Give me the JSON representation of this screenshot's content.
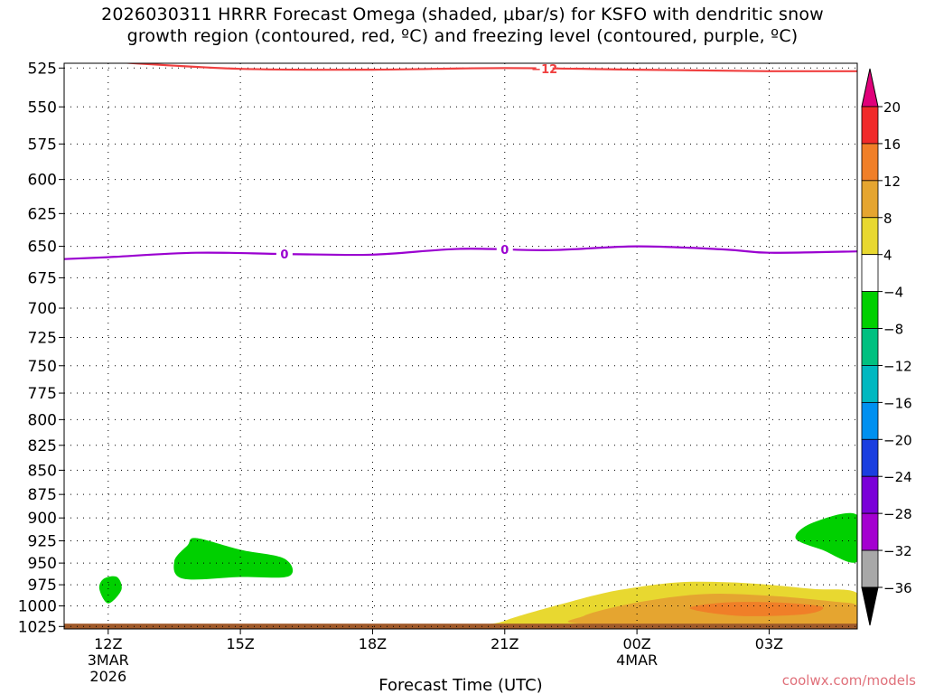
{
  "title": {
    "line1": "2026030311 HRRR Forecast Omega (shaded, μbar/s) for KSFO with dendritic snow",
    "line2": "growth region (contoured, red, ºC) and freezing level (contoured, purple, ºC)"
  },
  "credit": "coolwx.com/models",
  "chart_data": {
    "type": "heatmap",
    "xlabel": "Forecast Time (UTC)",
    "ylabel": "",
    "x_ticks": [
      {
        "label": "12Z",
        "hour": 0,
        "sub": [
          "3MAR",
          "2026"
        ]
      },
      {
        "label": "15Z",
        "hour": 3,
        "sub": []
      },
      {
        "label": "18Z",
        "hour": 6,
        "sub": []
      },
      {
        "label": "21Z",
        "hour": 9,
        "sub": []
      },
      {
        "label": "00Z",
        "hour": 12,
        "sub": [
          "4MAR"
        ]
      },
      {
        "label": "03Z",
        "hour": 15,
        "sub": []
      }
    ],
    "xlim_hours": [
      -1,
      17
    ],
    "y_ticks": [
      525,
      550,
      575,
      600,
      625,
      650,
      675,
      700,
      725,
      750,
      775,
      800,
      825,
      850,
      875,
      900,
      925,
      950,
      975,
      1000,
      1025
    ],
    "ylim_hpa": [
      522,
      1028
    ],
    "y_scale": "log-pressure",
    "grid": true,
    "colorbar": {
      "labels": [
        "20",
        "16",
        "12",
        "8",
        "4",
        "−4",
        "−8",
        "−12",
        "−16",
        "−20",
        "−24",
        "−28",
        "−32",
        "−36"
      ],
      "colors": [
        "#f02a2a",
        "#f07f28",
        "#e5a530",
        "#e8d830",
        "#ffffff",
        "#00d000",
        "#00c080",
        "#00b8c0",
        "#0090f0",
        "#1a3ee0",
        "#7a00d8",
        "#a400d0",
        "#a8a8a8"
      ],
      "top_color": "#e0007a",
      "bottom_color": "#000000"
    },
    "contours": [
      {
        "name": "dendritic snow growth",
        "color": "#f04040",
        "label": "−12",
        "label_hour": 9.9,
        "points": [
          [
            0,
            521
          ],
          [
            3,
            525.5
          ],
          [
            6,
            526
          ],
          [
            9,
            525
          ],
          [
            12,
            526
          ],
          [
            15,
            527
          ],
          [
            17,
            527
          ]
        ]
      },
      {
        "name": "freezing level",
        "color": "#9a00d0",
        "label": "0",
        "label_hours": [
          4,
          9
        ],
        "points": [
          [
            -1,
            660
          ],
          [
            0,
            658.5
          ],
          [
            2,
            655
          ],
          [
            4,
            656
          ],
          [
            6,
            656.5
          ],
          [
            8,
            652
          ],
          [
            10,
            653
          ],
          [
            12,
            650
          ],
          [
            14,
            652.5
          ],
          [
            15,
            655
          ],
          [
            17,
            654
          ]
        ]
      }
    ],
    "shaded_regions": [
      {
        "value_range": [
          -8,
          -4
        ],
        "color": "#00d000",
        "points": [
          [
            -0.2,
            980
          ],
          [
            -0.1,
            968
          ],
          [
            0.2,
            966
          ],
          [
            0.3,
            981
          ],
          [
            0,
            997
          ]
        ]
      },
      {
        "value_range": [
          -8,
          -4
        ],
        "color": "#00d000",
        "points": [
          [
            1.5,
            948
          ],
          [
            1.8,
            930
          ],
          [
            2,
            922
          ],
          [
            3,
            935
          ],
          [
            4,
            945
          ],
          [
            4.1,
            965
          ],
          [
            3,
            966
          ],
          [
            1.7,
            968
          ]
        ]
      },
      {
        "value_range": [
          -8,
          -4
        ],
        "color": "#00d000",
        "points": [
          [
            15.6,
            922
          ],
          [
            16,
            905
          ],
          [
            17,
            897
          ],
          [
            17,
            948
          ],
          [
            16.2,
            935
          ]
        ]
      },
      {
        "value_range": [
          4,
          8
        ],
        "color": "#e8d830",
        "points": [
          [
            9,
            1018
          ],
          [
            11,
            988
          ],
          [
            12,
            978
          ],
          [
            13,
            972
          ],
          [
            14,
            972
          ],
          [
            15,
            975
          ],
          [
            16,
            980
          ],
          [
            17,
            985
          ],
          [
            17,
            1022
          ],
          [
            9.5,
            1022
          ]
        ]
      },
      {
        "value_range": [
          8,
          12
        ],
        "color": "#e5a530",
        "points": [
          [
            10.8,
            1012
          ],
          [
            12,
            996
          ],
          [
            13.5,
            986
          ],
          [
            15,
            988
          ],
          [
            16.5,
            995
          ],
          [
            17,
            1000
          ],
          [
            17,
            1022
          ],
          [
            11,
            1022
          ]
        ]
      },
      {
        "value_range": [
          12,
          16
        ],
        "color": "#f07f28",
        "points": [
          [
            13.2,
            1003
          ],
          [
            14,
            996
          ],
          [
            15.2,
            996
          ],
          [
            16.2,
            1001
          ],
          [
            15.8,
            1010
          ],
          [
            14.3,
            1012
          ]
        ]
      }
    ],
    "surface_band": {
      "color": "#a05a2a",
      "top_hpa": 1021.5
    }
  }
}
